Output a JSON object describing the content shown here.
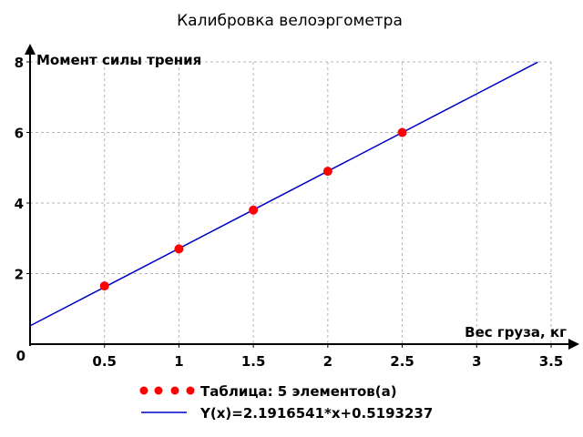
{
  "chart_data": {
    "type": "scatter",
    "title": "Калибровка велоэргометра",
    "xlabel": "Вес груза, кг",
    "ylabel": "Момент силы трения",
    "xlim": [
      0,
      3.5
    ],
    "ylim": [
      0,
      8
    ],
    "x_ticks": [
      0.5,
      1,
      1.5,
      2,
      2.5,
      3,
      3.5
    ],
    "x_tick_labels": [
      "0.5",
      "1",
      "1.5",
      "2",
      "2.5",
      "3",
      "3.5"
    ],
    "y_ticks": [
      2,
      4,
      6,
      8
    ],
    "y_tick_labels": [
      "2",
      "4",
      "6",
      "8"
    ],
    "origin_label": "0",
    "grid": true,
    "legend_position": "bottom",
    "series": [
      {
        "name": "Таблица: 5 элементов(а)",
        "kind": "points",
        "color": "#ff0000",
        "x": [
          0.5,
          1,
          1.5,
          2,
          2.5
        ],
        "y": [
          1.65,
          2.7,
          3.8,
          4.9,
          6.0
        ]
      },
      {
        "name": "Y(x)=2.1916541*x+0.5193237",
        "kind": "line",
        "color": "#0000c8",
        "slope": 2.1916541,
        "intercept": 0.5193237,
        "x_range": [
          0,
          3.41
        ]
      }
    ]
  }
}
